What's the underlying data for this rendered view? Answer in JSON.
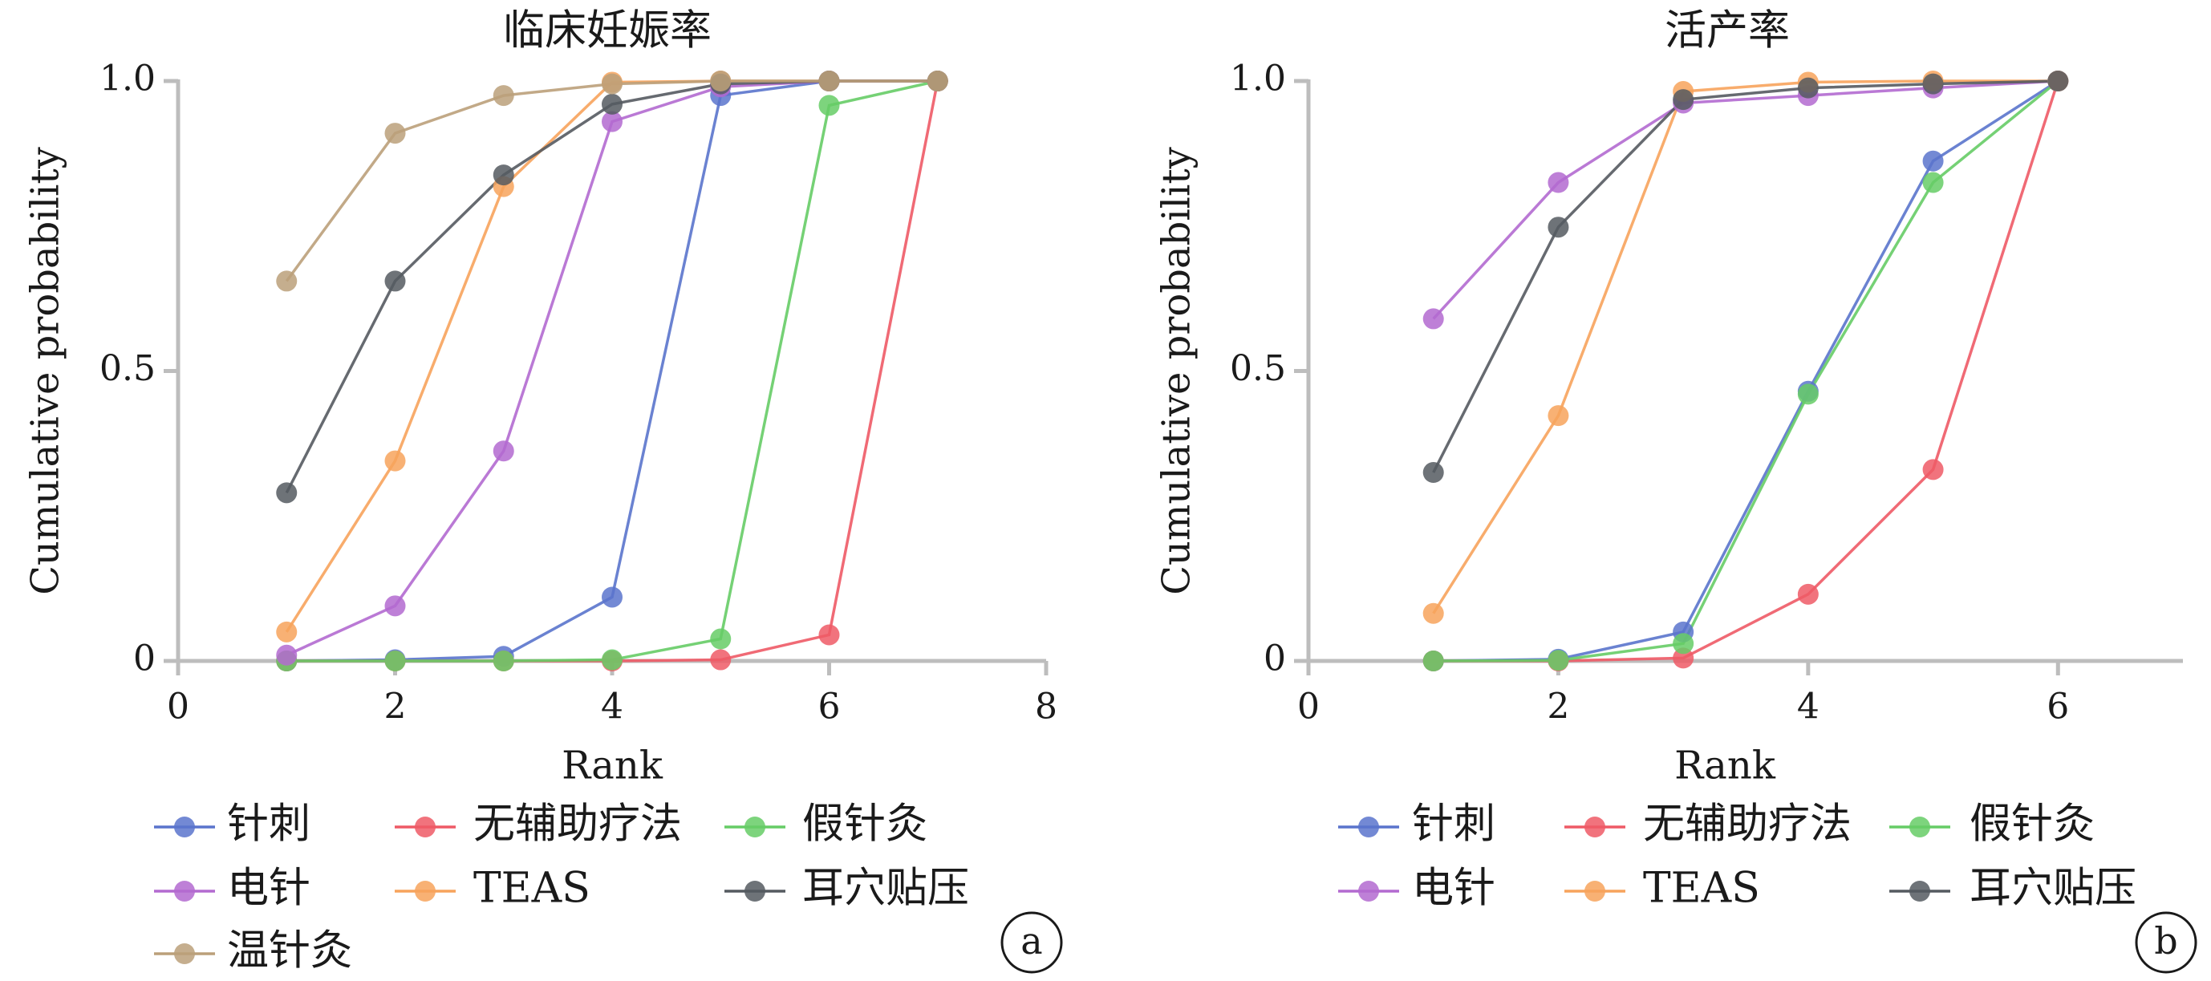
{
  "chart_data": [
    {
      "panel": "a",
      "type": "line",
      "title": "临床妊娠率",
      "xlabel": "Rank",
      "ylabel": "Cumulative probability",
      "xlim": [
        0,
        8
      ],
      "ylim": [
        0,
        1
      ],
      "xticks": [
        0,
        2,
        4,
        6,
        8
      ],
      "yticks": [
        {
          "value": 0,
          "label": "0"
        },
        {
          "value": 0.5,
          "label": "0.5"
        },
        {
          "value": 1,
          "label": "1.0"
        }
      ],
      "grid": false,
      "legend_position": "bottom",
      "x": [
        1,
        2,
        3,
        4,
        5,
        6,
        7
      ],
      "series": [
        {
          "name": "针刺",
          "color": "#5a74cc",
          "values": [
            0.0,
            0.002,
            0.008,
            0.11,
            0.975,
            1.0,
            1.0
          ]
        },
        {
          "name": "无辅助疗法",
          "color": "#ee5a66",
          "values": [
            0.0,
            0.0,
            0.0,
            0.0,
            0.002,
            0.045,
            1.0
          ]
        },
        {
          "name": "假针灸",
          "color": "#66cc66",
          "values": [
            0.0,
            0.0,
            0.0,
            0.002,
            0.038,
            0.958,
            1.0
          ]
        },
        {
          "name": "电针",
          "color": "#b36ad0",
          "values": [
            0.01,
            0.095,
            0.362,
            0.93,
            0.99,
            1.0,
            1.0
          ]
        },
        {
          "name": "TEAS",
          "color": "#f7a35c",
          "values": [
            0.05,
            0.345,
            0.818,
            0.998,
            1.0,
            1.0,
            1.0
          ]
        },
        {
          "name": "耳穴贴压",
          "color": "#555a60",
          "values": [
            0.29,
            0.655,
            0.838,
            0.96,
            0.995,
            1.0,
            1.0
          ]
        },
        {
          "name": "温针灸",
          "color": "#bba07a",
          "values": [
            0.655,
            0.91,
            0.975,
            0.995,
            1.0,
            1.0,
            1.0
          ]
        }
      ]
    },
    {
      "panel": "b",
      "type": "line",
      "title": "活产率",
      "xlabel": "Rank",
      "ylabel": "Cumulative probability",
      "xlim": [
        0,
        7
      ],
      "ylim": [
        0,
        1
      ],
      "xticks": [
        0,
        2,
        4,
        6
      ],
      "yticks": [
        {
          "value": 0,
          "label": "0"
        },
        {
          "value": 0.5,
          "label": "0.5"
        },
        {
          "value": 1,
          "label": "1.0"
        }
      ],
      "grid": false,
      "legend_position": "bottom",
      "x": [
        1,
        2,
        3,
        4,
        5,
        6
      ],
      "series": [
        {
          "name": "针刺",
          "color": "#5a74cc",
          "values": [
            0.0,
            0.003,
            0.05,
            0.465,
            0.862,
            1.0
          ]
        },
        {
          "name": "无辅助疗法",
          "color": "#ee5a66",
          "values": [
            0.0,
            0.0,
            0.005,
            0.115,
            0.33,
            1.0
          ]
        },
        {
          "name": "假针灸",
          "color": "#66cc66",
          "values": [
            0.0,
            0.001,
            0.03,
            0.46,
            0.825,
            1.0
          ]
        },
        {
          "name": "电针",
          "color": "#b36ad0",
          "values": [
            0.59,
            0.825,
            0.962,
            0.975,
            0.988,
            1.0
          ]
        },
        {
          "name": "TEAS",
          "color": "#f7a35c",
          "values": [
            0.082,
            0.423,
            0.982,
            0.998,
            1.0,
            1.0
          ]
        },
        {
          "name": "耳穴贴压",
          "color": "#555a60",
          "values": [
            0.325,
            0.748,
            0.968,
            0.988,
            0.995,
            1.0
          ]
        }
      ]
    }
  ]
}
